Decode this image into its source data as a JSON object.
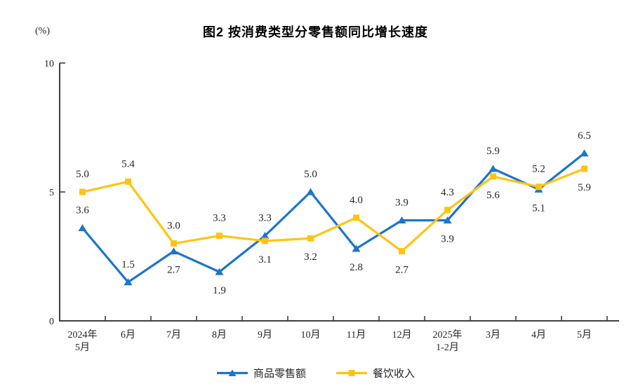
{
  "page": {
    "background": "#ffffff"
  },
  "chart_data": {
    "type": "line",
    "title": "图2 按消费类型分零售额同比增长速度",
    "unit_label": "(%)",
    "categories": [
      "2024年\n5月",
      "6月",
      "7月",
      "8月",
      "9月",
      "10月",
      "11月",
      "12月",
      "2025年\n1-2月",
      "3月",
      "4月",
      "5月"
    ],
    "ylim": [
      0,
      10
    ],
    "y_ticks": [
      0,
      5,
      10
    ],
    "grid": false,
    "legend_position": "bottom",
    "axis_color": "#404040",
    "text_color": "#262626",
    "value_label_format": "one-decimal",
    "series": [
      {
        "name": "商品零售额",
        "color": "#1C74CE",
        "marker": "triangle",
        "values": [
          3.6,
          1.5,
          2.7,
          1.9,
          3.3,
          5.0,
          2.8,
          3.9,
          3.9,
          5.9,
          5.1,
          6.5
        ],
        "label_positions": [
          "above",
          "above",
          "below",
          "below",
          "above",
          "above",
          "below",
          "above",
          "below",
          "above",
          "below",
          "above"
        ]
      },
      {
        "name": "餐饮收入",
        "color": "#FFC413",
        "marker": "square",
        "values": [
          5.0,
          5.4,
          3.0,
          3.3,
          3.1,
          3.2,
          4.0,
          2.7,
          4.3,
          5.6,
          5.2,
          5.9
        ],
        "label_positions": [
          "above",
          "above",
          "above",
          "above",
          "below",
          "below",
          "above",
          "below",
          "above",
          "below",
          "above",
          "below"
        ]
      }
    ]
  }
}
